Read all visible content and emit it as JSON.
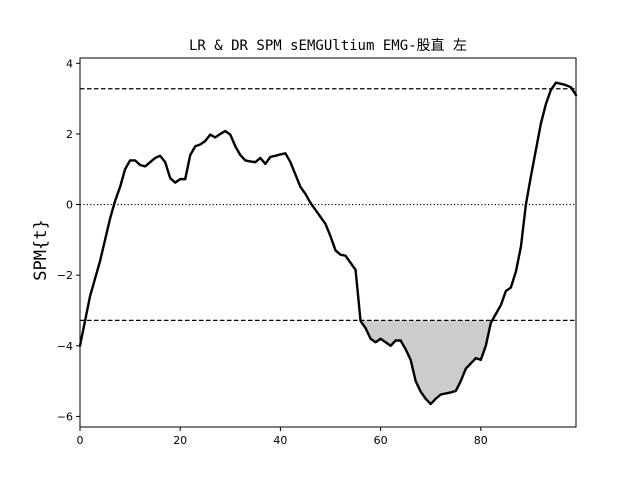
{
  "chart_data": {
    "type": "line",
    "title": "LR & DR SPM sEMGUltium EMG-股直 左",
    "xlabel": "",
    "ylabel": "SPM{t}",
    "xlim": [
      0,
      99
    ],
    "ylim": [
      -6.3,
      4.15
    ],
    "xticks": [
      "0",
      "20",
      "40",
      "60",
      "80"
    ],
    "yticks": [
      "-6",
      "-4",
      "-2",
      "0",
      "2",
      "4"
    ],
    "grid": false,
    "threshold": 3.28,
    "zero_line": 0,
    "shaded_cluster": {
      "x_start": 56,
      "x_end": 82,
      "side": "below"
    },
    "series": [
      {
        "color": "#000000",
        "x": [
          0,
          1,
          2,
          3,
          4,
          5,
          6,
          7,
          8,
          9,
          10,
          11,
          12,
          13,
          14,
          15,
          16,
          17,
          18,
          19,
          20,
          21,
          22,
          23,
          24,
          25,
          26,
          27,
          28,
          29,
          30,
          31,
          32,
          33,
          34,
          35,
          36,
          37,
          38,
          39,
          40,
          41,
          42,
          43,
          44,
          45,
          46,
          47,
          48,
          49,
          50,
          51,
          52,
          53,
          54,
          55,
          56,
          57,
          58,
          59,
          60,
          61,
          62,
          63,
          64,
          65,
          66,
          67,
          68,
          69,
          70,
          71,
          72,
          73,
          74,
          75,
          76,
          77,
          78,
          79,
          80,
          81,
          82,
          83,
          84,
          85,
          86,
          87,
          88,
          89,
          90,
          91,
          92,
          93,
          94,
          95,
          96,
          97,
          98,
          99
        ],
        "y": [
          -4.0,
          -3.3,
          -2.6,
          -2.1,
          -1.6,
          -1.0,
          -0.4,
          0.1,
          0.5,
          1.0,
          1.25,
          1.25,
          1.12,
          1.08,
          1.2,
          1.32,
          1.38,
          1.2,
          0.75,
          0.62,
          0.72,
          0.72,
          1.4,
          1.65,
          1.7,
          1.8,
          1.98,
          1.9,
          2.0,
          2.08,
          1.98,
          1.65,
          1.4,
          1.25,
          1.22,
          1.2,
          1.32,
          1.15,
          1.35,
          1.38,
          1.42,
          1.45,
          1.2,
          0.85,
          0.5,
          0.3,
          0.05,
          -0.15,
          -0.35,
          -0.55,
          -0.9,
          -1.3,
          -1.42,
          -1.45,
          -1.65,
          -1.85,
          -3.3,
          -3.5,
          -3.8,
          -3.9,
          -3.8,
          -3.9,
          -4.0,
          -3.85,
          -3.85,
          -4.1,
          -4.4,
          -5.0,
          -5.3,
          -5.5,
          -5.65,
          -5.5,
          -5.38,
          -5.35,
          -5.32,
          -5.28,
          -5.0,
          -4.65,
          -4.5,
          -4.35,
          -4.4,
          -4.0,
          -3.35,
          -3.1,
          -2.85,
          -2.45,
          -2.35,
          -1.9,
          -1.2,
          0.0,
          0.8,
          1.55,
          2.3,
          2.85,
          3.25,
          3.45,
          3.42,
          3.38,
          3.32,
          3.1
        ]
      }
    ]
  }
}
